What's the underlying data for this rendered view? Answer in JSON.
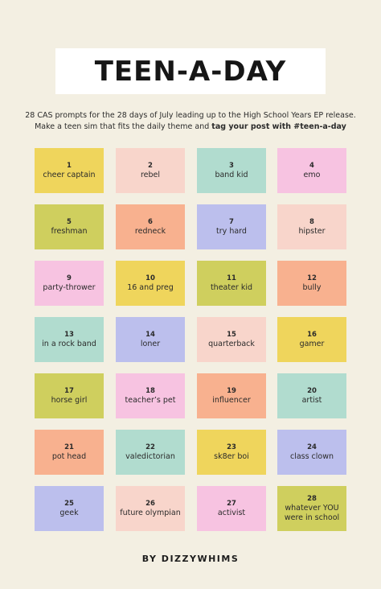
{
  "title": "TEEN-A-DAY",
  "subtitle": {
    "line1": "28 CAS prompts for the 28 days of July leading up to the High School Years EP release.",
    "line2_plain": "Make a teen sim that fits the daily theme and ",
    "line2_bold": "tag your post with #teen-a-day"
  },
  "colors": {
    "yellow": "#efd55c",
    "peach": "#f8d5cb",
    "mint": "#b1dccf",
    "pink": "#f7c3e1",
    "olive": "#cfcf5e",
    "orange": "#f8b18f",
    "lavender": "#bcbfed"
  },
  "prompts": [
    {
      "num": "1",
      "label": "cheer captain",
      "color": "yellow"
    },
    {
      "num": "2",
      "label": "rebel",
      "color": "peach"
    },
    {
      "num": "3",
      "label": "band kid",
      "color": "mint"
    },
    {
      "num": "4",
      "label": "emo",
      "color": "pink"
    },
    {
      "num": "5",
      "label": "freshman",
      "color": "olive"
    },
    {
      "num": "6",
      "label": "redneck",
      "color": "orange"
    },
    {
      "num": "7",
      "label": "try hard",
      "color": "lavender"
    },
    {
      "num": "8",
      "label": "hipster",
      "color": "peach"
    },
    {
      "num": "9",
      "label": "party-thrower",
      "color": "pink"
    },
    {
      "num": "10",
      "label": "16 and preg",
      "color": "yellow"
    },
    {
      "num": "11",
      "label": "theater kid",
      "color": "olive"
    },
    {
      "num": "12",
      "label": "bully",
      "color": "orange"
    },
    {
      "num": "13",
      "label": "in a rock band",
      "color": "mint"
    },
    {
      "num": "14",
      "label": "loner",
      "color": "lavender"
    },
    {
      "num": "15",
      "label": "quarterback",
      "color": "peach"
    },
    {
      "num": "16",
      "label": "gamer",
      "color": "yellow"
    },
    {
      "num": "17",
      "label": "horse girl",
      "color": "olive"
    },
    {
      "num": "18",
      "label": "teacher’s pet",
      "color": "pink"
    },
    {
      "num": "19",
      "label": "influencer",
      "color": "orange"
    },
    {
      "num": "20",
      "label": "artist",
      "color": "mint"
    },
    {
      "num": "21",
      "label": "pot head",
      "color": "orange"
    },
    {
      "num": "22",
      "label": "valedictorian",
      "color": "mint"
    },
    {
      "num": "23",
      "label": "sk8er boi",
      "color": "yellow"
    },
    {
      "num": "24",
      "label": "class clown",
      "color": "lavender"
    },
    {
      "num": "25",
      "label": "geek",
      "color": "lavender"
    },
    {
      "num": "26",
      "label": "future olympian",
      "color": "peach"
    },
    {
      "num": "27",
      "label": "activist",
      "color": "pink"
    },
    {
      "num": "28",
      "label": "whatever YOU were in school",
      "color": "olive"
    }
  ],
  "footer": "BY DIZZYWHIMS"
}
